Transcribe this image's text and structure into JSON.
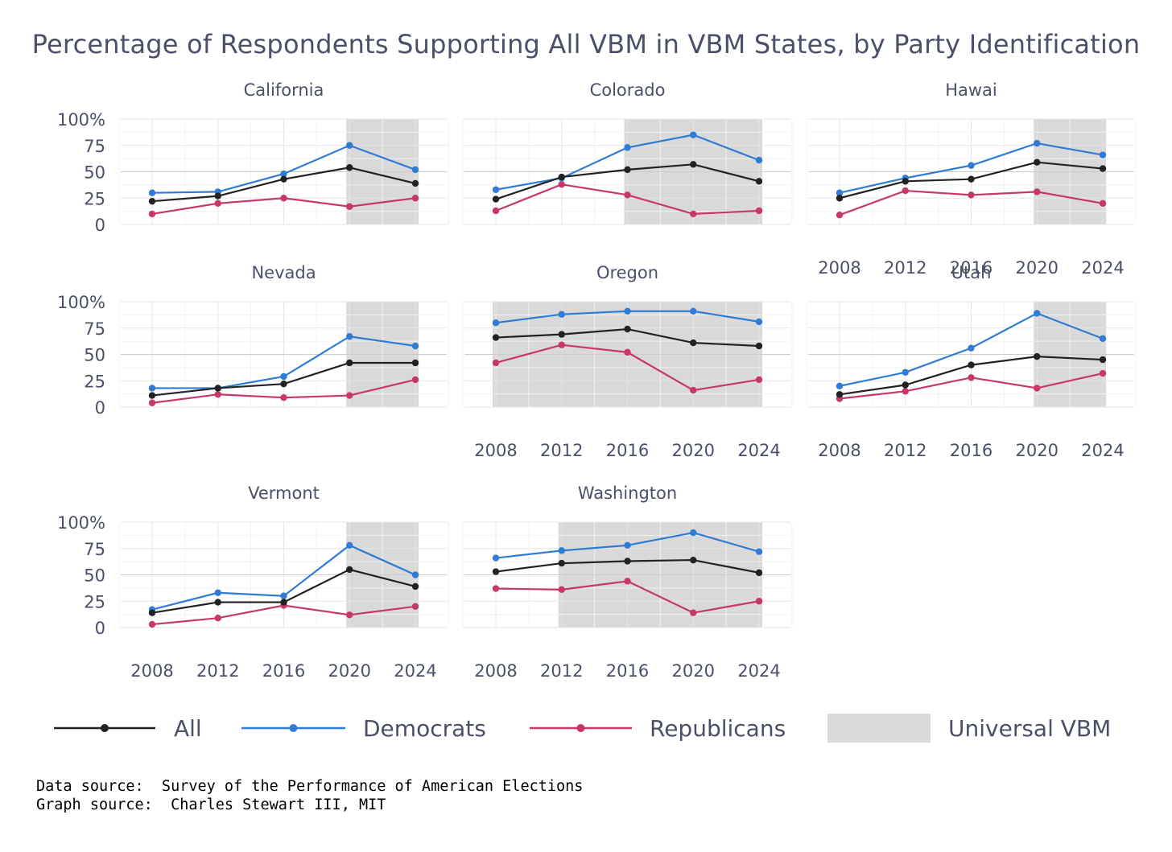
{
  "chart_data": {
    "type": "line",
    "title": "Percentage of Respondents Supporting All VBM in VBM States, by Party Identification",
    "x": [
      2008,
      2012,
      2016,
      2020,
      2024
    ],
    "x_tick_labels": [
      "2008",
      "2012",
      "2016",
      "2020",
      "2024"
    ],
    "y_tick_labels": [
      "100%",
      "75",
      "50",
      "25",
      "0"
    ],
    "ylim": [
      0,
      100
    ],
    "legend_position": "bottom",
    "legend": [
      {
        "label": "All",
        "type": "line",
        "color": "#222222"
      },
      {
        "label": "Democrats",
        "type": "line",
        "color": "#2f7bd6"
      },
      {
        "label": "Republicans",
        "type": "line",
        "color": "#c83865"
      },
      {
        "label": "Universal VBM",
        "type": "shade",
        "color": "#d9d9d9"
      }
    ],
    "panels": [
      {
        "state": "California",
        "universal_vbm": [
          2020,
          2024
        ],
        "series": {
          "All": [
            22,
            27,
            43,
            54,
            39
          ],
          "Democrats": [
            30,
            31,
            48,
            75,
            52
          ],
          "Republicans": [
            10,
            20,
            25,
            17,
            25
          ]
        }
      },
      {
        "state": "Colorado",
        "universal_vbm": [
          2016,
          2024
        ],
        "series": {
          "All": [
            24,
            45,
            52,
            57,
            41
          ],
          "Democrats": [
            33,
            44,
            73,
            85,
            61
          ],
          "Republicans": [
            13,
            38,
            28,
            10,
            13
          ]
        }
      },
      {
        "state": "Hawai",
        "universal_vbm": [
          2020,
          2024
        ],
        "series": {
          "All": [
            25,
            41,
            43,
            59,
            53
          ],
          "Democrats": [
            30,
            44,
            56,
            77,
            66
          ],
          "Republicans": [
            9,
            32,
            28,
            31,
            20
          ]
        }
      },
      {
        "state": "Nevada",
        "universal_vbm": [
          2020,
          2024
        ],
        "series": {
          "All": [
            11,
            18,
            22,
            42,
            42
          ],
          "Democrats": [
            18,
            18,
            29,
            67,
            58
          ],
          "Republicans": [
            4,
            12,
            9,
            11,
            26
          ]
        }
      },
      {
        "state": "Oregon",
        "universal_vbm": [
          2008,
          2024
        ],
        "series": {
          "All": [
            66,
            69,
            74,
            61,
            58
          ],
          "Democrats": [
            80,
            88,
            91,
            91,
            81
          ],
          "Republicans": [
            42,
            59,
            52,
            16,
            26
          ]
        }
      },
      {
        "state": "Utah",
        "universal_vbm": [
          2020,
          2024
        ],
        "series": {
          "All": [
            12,
            21,
            40,
            48,
            45
          ],
          "Democrats": [
            20,
            33,
            56,
            89,
            65
          ],
          "Republicans": [
            8,
            15,
            28,
            18,
            32
          ]
        }
      },
      {
        "state": "Vermont",
        "universal_vbm": [
          2020,
          2024
        ],
        "series": {
          "All": [
            14,
            24,
            24,
            55,
            39
          ],
          "Democrats": [
            17,
            33,
            30,
            78,
            50
          ],
          "Republicans": [
            3,
            9,
            21,
            12,
            20
          ]
        }
      },
      {
        "state": "Washington",
        "universal_vbm": [
          2012,
          2024
        ],
        "series": {
          "All": [
            53,
            61,
            63,
            64,
            52
          ],
          "Democrats": [
            66,
            73,
            78,
            90,
            72
          ],
          "Republicans": [
            37,
            36,
            44,
            14,
            25
          ]
        }
      }
    ]
  },
  "footer": {
    "data_source": "Data source:  Survey of the Performance of American Elections",
    "graph_source": "Graph source:  Charles Stewart III, MIT"
  }
}
